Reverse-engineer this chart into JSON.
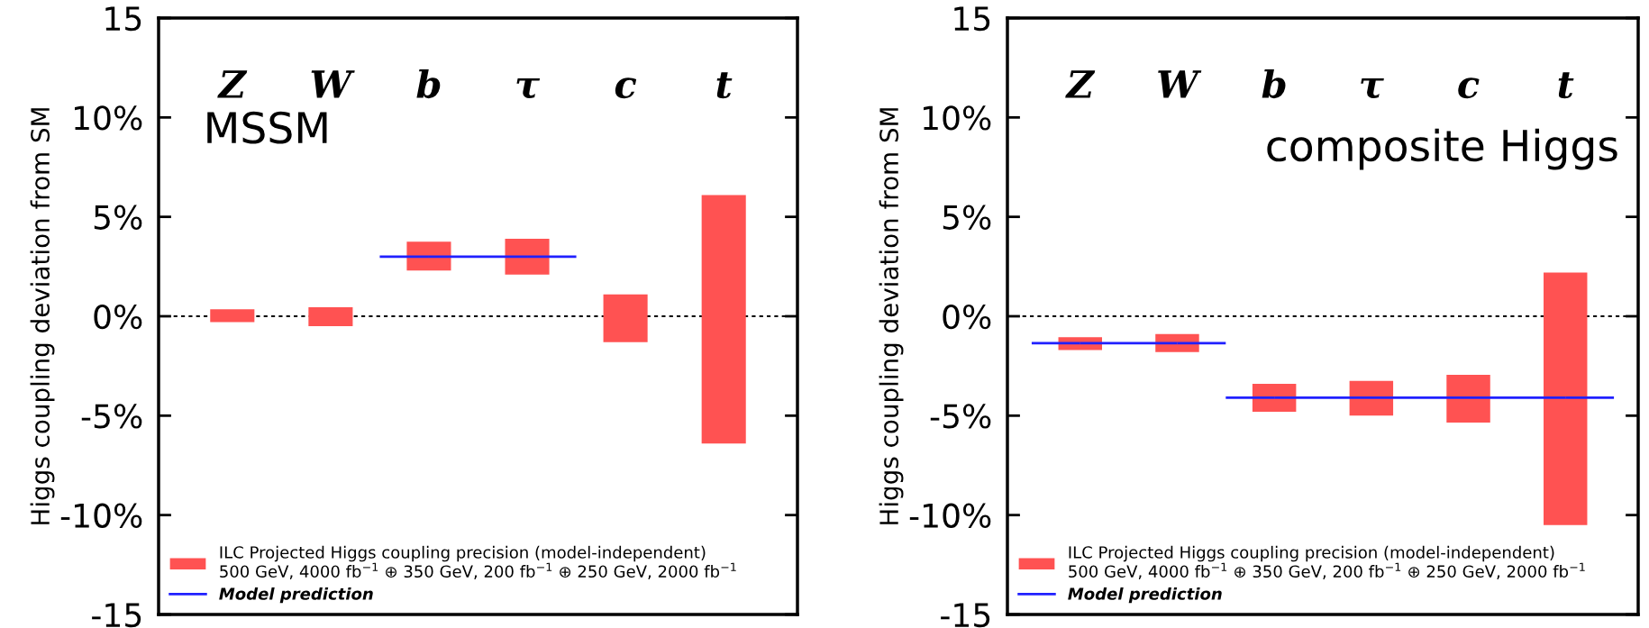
{
  "chart_data": [
    {
      "type": "bar",
      "annotations": [
        "MSSM"
      ],
      "ylabel": "Higgs coupling deviation from SM",
      "categories": [
        "Z",
        "W",
        "b",
        "τ",
        "c",
        "t"
      ],
      "series": [
        {
          "name": "ILC Projected Higgs coupling precision (model-independent)\n500 GeV, 4000 fb$^{−1}$ ⊕ 350 GeV, 200 fb$^{−1}$ ⊕ 250 GeV, 2000 fb$^{−1}$",
          "color": "#ff5252",
          "base": [
            -0.3,
            -0.5,
            2.3,
            2.1,
            -1.3,
            -6.4
          ],
          "values": [
            0.65,
            0.95,
            1.45,
            1.8,
            2.4,
            12.5
          ]
        },
        {
          "name": "Model prediction",
          "type": "line",
          "color": "#2020ff",
          "values": [
            null,
            null,
            3.0,
            3.0,
            null,
            null
          ]
        }
      ],
      "ylim": [
        -15,
        15
      ],
      "yticks": [
        {
          "value": -15,
          "label": "-15"
        },
        {
          "value": -10,
          "label": "-10%"
        },
        {
          "value": -5,
          "label": "-5%"
        },
        {
          "value": 0,
          "label": "0%"
        },
        {
          "value": 5,
          "label": "5%"
        },
        {
          "value": 10,
          "label": "10%"
        },
        {
          "value": 15,
          "label": "15"
        }
      ],
      "ref_lines": [
        {
          "axis": "y",
          "value": 0,
          "color": "#000000",
          "line_style": "dotted"
        }
      ],
      "legend": "bottom left",
      "grid": false
    },
    {
      "type": "bar",
      "annotations": [
        "composite Higgs"
      ],
      "ylabel": "Higgs coupling deviation from SM",
      "categories": [
        "Z",
        "W",
        "b",
        "τ",
        "c",
        "t"
      ],
      "series": [
        {
          "name": "ILC Projected Higgs coupling precision (model-independent)\n500 GeV, 4000 fb$^{−1}$ ⊕ 350 GeV, 200 fb$^{−1}$ ⊕ 250 GeV, 2000 fb$^{−1}$",
          "color": "#ff5252",
          "base": [
            -1.7,
            -1.8,
            -4.8,
            -5.0,
            -5.35,
            -10.5
          ],
          "values": [
            0.65,
            0.9,
            1.4,
            1.75,
            2.4,
            12.7
          ]
        },
        {
          "name": "Model prediction",
          "type": "line",
          "color": "#2020ff",
          "values": [
            -1.35,
            -1.35,
            null,
            null,
            null,
            null
          ]
        },
        {
          "type": "line",
          "color": "#2020ff",
          "values": [
            null,
            null,
            -4.1,
            -4.1,
            -4.1,
            -4.1
          ]
        }
      ],
      "ylim": [
        -15,
        15
      ],
      "yticks": [
        {
          "value": -15,
          "label": "-15"
        },
        {
          "value": -10,
          "label": "-10%"
        },
        {
          "value": -5,
          "label": "-5%"
        },
        {
          "value": 0,
          "label": "0%"
        },
        {
          "value": 5,
          "label": "5%"
        },
        {
          "value": 10,
          "label": "10%"
        },
        {
          "value": 15,
          "label": "15"
        }
      ],
      "ref_lines": [
        {
          "axis": "y",
          "value": 0,
          "color": "#000000",
          "line_style": "dotted"
        }
      ],
      "legend": "bottom left",
      "grid": false
    }
  ]
}
